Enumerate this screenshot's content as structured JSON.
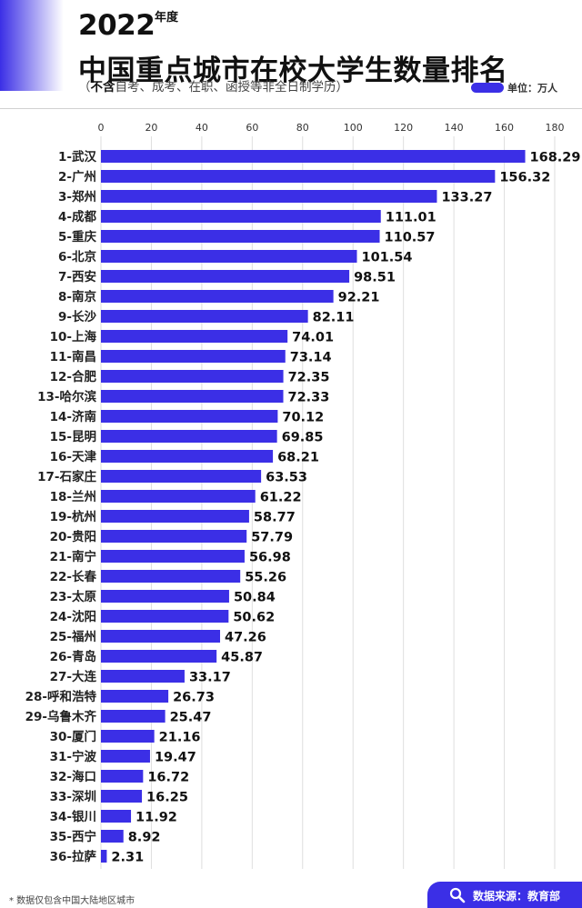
{
  "header": {
    "year": "2022",
    "year_suffix": "年度",
    "title": "中国重点城市在校大学生数量排名",
    "subtitle_bold": "不含",
    "subtitle_rest": "自考、成考、在职、函授等非全日制学历",
    "paren_open": "（",
    "paren_close": "）",
    "unit_label": "单位：万人"
  },
  "footer": {
    "note": "* 数据仅包含中国大陆地区城市",
    "source": "数据来源：教育部"
  },
  "colors": {
    "bar": "#3b2fe6",
    "accent": "#3b2fe6"
  },
  "icons": {
    "source": "search-icon"
  },
  "chart_data": {
    "type": "bar",
    "orientation": "horizontal",
    "title": "中国重点城市在校大学生数量排名",
    "xlim": [
      0,
      180
    ],
    "x_ticks": [
      0,
      20,
      40,
      60,
      80,
      100,
      120,
      140,
      160,
      180
    ],
    "x_axis_position": "top",
    "grid": true,
    "categories": [
      "1-武汉",
      "2-广州",
      "3-郑州",
      "4-成都",
      "5-重庆",
      "6-北京",
      "7-西安",
      "8-南京",
      "9-长沙",
      "10-上海",
      "11-南昌",
      "12-合肥",
      "13-哈尔滨",
      "14-济南",
      "15-昆明",
      "16-天津",
      "17-石家庄",
      "18-兰州",
      "19-杭州",
      "20-贵阳",
      "21-南宁",
      "22-长春",
      "23-太原",
      "24-沈阳",
      "25-福州",
      "26-青岛",
      "27-大连",
      "28-呼和浩特",
      "29-乌鲁木齐",
      "30-厦门",
      "31-宁波",
      "32-海口",
      "33-深圳",
      "34-银川",
      "35-西宁",
      "36-拉萨"
    ],
    "values": [
      168.29,
      156.32,
      133.27,
      111.01,
      110.57,
      101.54,
      98.51,
      92.21,
      82.11,
      74.01,
      73.14,
      72.35,
      72.33,
      70.12,
      69.85,
      68.21,
      63.53,
      61.22,
      58.77,
      57.79,
      56.98,
      55.26,
      50.84,
      50.62,
      47.26,
      45.87,
      33.17,
      26.73,
      25.47,
      21.16,
      19.47,
      16.72,
      16.25,
      11.92,
      8.92,
      2.31
    ],
    "value_labels": [
      "168.29",
      "156.32",
      "133.27",
      "111.01",
      "110.57",
      "101.54",
      "98.51",
      "92.21",
      "82.11",
      "74.01",
      "73.14",
      "72.35",
      "72.33",
      "70.12",
      "69.85",
      "68.21",
      "63.53",
      "61.22",
      "58.77",
      "57.79",
      "56.98",
      "55.26",
      "50.84",
      "50.62",
      "47.26",
      "45.87",
      "33.17",
      "26.73",
      "25.47",
      "21.16",
      "19.47",
      "16.72",
      "16.25",
      "11.92",
      "8.92",
      "2.31"
    ]
  }
}
